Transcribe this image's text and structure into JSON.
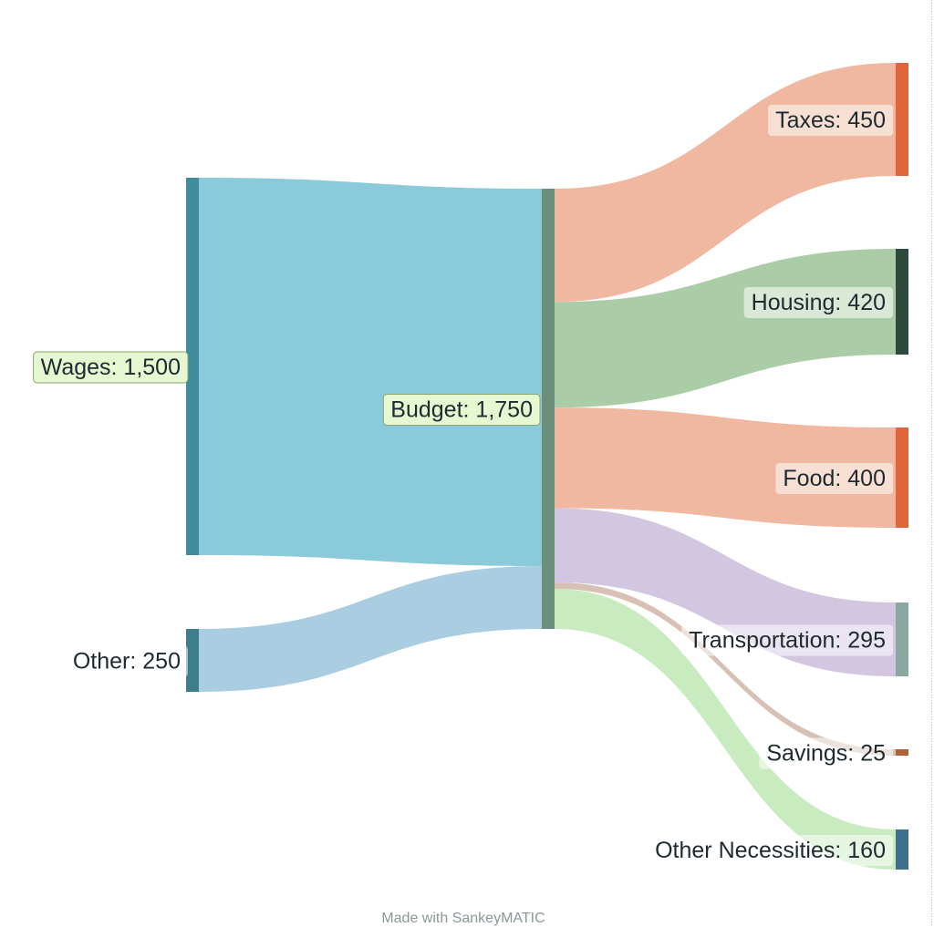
{
  "credit": "Made with SankeyMATIC",
  "chart_data": {
    "type": "sankey",
    "nodes": [
      {
        "id": "wages",
        "label": "Wages: 1,500",
        "value": 1500,
        "color": "#3e8c9c",
        "highlight": true
      },
      {
        "id": "other",
        "label": "Other: 250",
        "value": 250,
        "color": "#3e7e8c",
        "highlight": false
      },
      {
        "id": "budget",
        "label": "Budget: 1,750",
        "value": 1750,
        "color": "#6b8f7a",
        "highlight": true
      },
      {
        "id": "taxes",
        "label": "Taxes: 450",
        "value": 450,
        "color": "#e0653a",
        "highlight": false
      },
      {
        "id": "housing",
        "label": "Housing: 420",
        "value": 420,
        "color": "#2f4a3a",
        "highlight": false
      },
      {
        "id": "food",
        "label": "Food: 400",
        "value": 400,
        "color": "#e0653a",
        "highlight": false
      },
      {
        "id": "transportation",
        "label": "Transportation: 295",
        "value": 295,
        "color": "#8aa8a0",
        "highlight": false
      },
      {
        "id": "savings",
        "label": "Savings: 25",
        "value": 25,
        "color": "#b0603a",
        "highlight": false
      },
      {
        "id": "other_necessities",
        "label": "Other Necessities: 160",
        "value": 160,
        "color": "#3e6f8c",
        "highlight": false
      }
    ],
    "flows": [
      {
        "from": "wages",
        "to": "budget",
        "value": 1500,
        "color": "#8bcadb"
      },
      {
        "from": "other",
        "to": "budget",
        "value": 250,
        "color": "#aacde2"
      },
      {
        "from": "budget",
        "to": "taxes",
        "value": 450,
        "color": "#f0b8a0"
      },
      {
        "from": "budget",
        "to": "housing",
        "value": 420,
        "color": "#aacca6"
      },
      {
        "from": "budget",
        "to": "food",
        "value": 400,
        "color": "#f0b8a0"
      },
      {
        "from": "budget",
        "to": "transportation",
        "value": 295,
        "color": "#d3c6e0"
      },
      {
        "from": "budget",
        "to": "savings",
        "value": 25,
        "color": "#d8c0b4"
      },
      {
        "from": "budget",
        "to": "other_necessities",
        "value": 160,
        "color": "#c8ecc0"
      }
    ]
  }
}
